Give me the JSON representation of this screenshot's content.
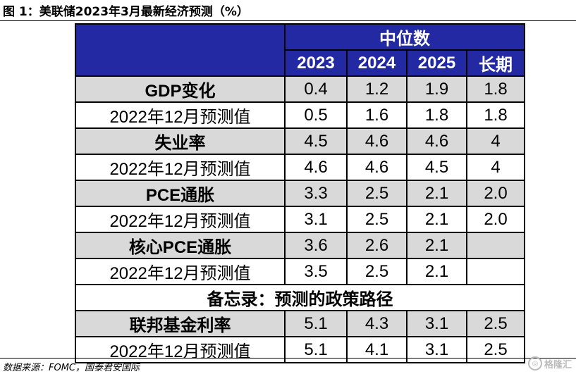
{
  "figure_title": "图 1：美联储2023年3月最新经济预测（%）",
  "source": "数据来源：FOMC，国泰君安国际",
  "watermark": "格隆汇",
  "header": {
    "group_label": "中位数",
    "columns": [
      "2023",
      "2024",
      "2025",
      "长期"
    ]
  },
  "rows": [
    {
      "label": "GDP变化",
      "values": [
        "0.4",
        "1.2",
        "1.9",
        "1.8"
      ]
    },
    {
      "label": "2022年12月预测值",
      "values": [
        "0.5",
        "1.6",
        "1.8",
        "1.8"
      ]
    },
    {
      "label": "失业率",
      "values": [
        "4.5",
        "4.6",
        "4.6",
        "4"
      ]
    },
    {
      "label": "2022年12月预测值",
      "values": [
        "4.6",
        "4.6",
        "4.5",
        "4"
      ]
    },
    {
      "label": "PCE通胀",
      "values": [
        "3.3",
        "2.5",
        "2.1",
        "2.0"
      ]
    },
    {
      "label": "2022年12月预测值",
      "values": [
        "3.1",
        "2.5",
        "2.1",
        "2.0"
      ]
    },
    {
      "label": "核心PCE通胀",
      "values": [
        "3.6",
        "2.6",
        "2.1",
        ""
      ]
    },
    {
      "label": "2022年12月预测值",
      "values": [
        "3.5",
        "2.5",
        "2.1",
        ""
      ]
    }
  ],
  "memo_label": "备忘录：预测的政策路径",
  "memo_rows": [
    {
      "label": "联邦基金利率",
      "values": [
        "5.1",
        "4.3",
        "3.1",
        "2.5"
      ]
    },
    {
      "label": "2022年12月预测值",
      "values": [
        "5.1",
        "4.1",
        "3.1",
        "2.5"
      ]
    }
  ]
}
